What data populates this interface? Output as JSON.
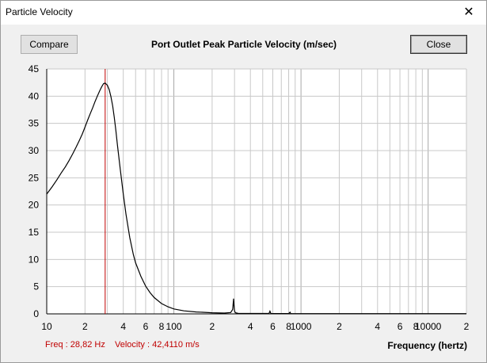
{
  "window": {
    "title": "Particle Velocity",
    "close_glyph": "✕"
  },
  "toolbar": {
    "compare_label": "Compare",
    "close_label": "Close"
  },
  "readout": {
    "freq": "Freq : 28,82 Hz",
    "velocity": "Velocity : 42,4110 m/s"
  },
  "colors": {
    "marker": "#c00000",
    "curve": "#000000",
    "grid": "#c8c8c8"
  },
  "chart_data": {
    "type": "line",
    "title": "Port Outlet Peak Particle Velocity (m/sec)",
    "xlabel": "Frequency (hertz)",
    "ylabel": "",
    "x_scale": "log",
    "xlim": [
      10,
      20000
    ],
    "ylim": [
      0,
      45
    ],
    "grid": true,
    "y_ticks": [
      0,
      5,
      10,
      15,
      20,
      25,
      30,
      35,
      40,
      45
    ],
    "x_ticks": [
      {
        "value": 10,
        "label": "10"
      },
      {
        "value": 20,
        "label": "2"
      },
      {
        "value": 40,
        "label": "4"
      },
      {
        "value": 60,
        "label": "6"
      },
      {
        "value": 80,
        "label": "8"
      },
      {
        "value": 100,
        "label": "100"
      },
      {
        "value": 200,
        "label": "2"
      },
      {
        "value": 400,
        "label": "4"
      },
      {
        "value": 600,
        "label": "6"
      },
      {
        "value": 800,
        "label": "8"
      },
      {
        "value": 1000,
        "label": "1000"
      },
      {
        "value": 2000,
        "label": "2"
      },
      {
        "value": 4000,
        "label": "4"
      },
      {
        "value": 6000,
        "label": "6"
      },
      {
        "value": 8000,
        "label": "8"
      },
      {
        "value": 10000,
        "label": "10000"
      },
      {
        "value": 20000,
        "label": "2"
      }
    ],
    "marker_x": 28.82,
    "series": [
      {
        "x": [
          10,
          11,
          12,
          13,
          14,
          15,
          16,
          17,
          18,
          19,
          20,
          21,
          22,
          23,
          24,
          25,
          26,
          27,
          28,
          28.82,
          30,
          31,
          32,
          33,
          34,
          35,
          36,
          38,
          40,
          42,
          45,
          48,
          50,
          55,
          60,
          65,
          70,
          80,
          90,
          100,
          120,
          150,
          200,
          250,
          280,
          290,
          295,
          298,
          300,
          305,
          320,
          400,
          500,
          560,
          570,
          580,
          600,
          700,
          800,
          820,
          830,
          850,
          1000,
          2000,
          5000,
          10000,
          20000
        ],
        "y": [
          22,
          23.3,
          24.6,
          25.9,
          27.0,
          28.2,
          29.4,
          30.6,
          31.8,
          33.0,
          34.3,
          35.6,
          36.8,
          37.9,
          39.0,
          40.0,
          40.9,
          41.7,
          42.3,
          42.41,
          42.0,
          41.2,
          39.9,
          38.2,
          36.1,
          33.6,
          31.0,
          26.3,
          22.0,
          18.3,
          14.0,
          10.9,
          9.4,
          6.9,
          5.1,
          3.9,
          3.0,
          1.9,
          1.3,
          0.9,
          0.55,
          0.35,
          0.2,
          0.15,
          0.25,
          0.8,
          2.8,
          1.2,
          0.5,
          0.2,
          0.1,
          0.07,
          0.07,
          0.07,
          0.5,
          0.08,
          0.06,
          0.06,
          0.06,
          0.3,
          0.06,
          0.05,
          0.05,
          0.04,
          0.04,
          0.04,
          0.04
        ]
      }
    ]
  }
}
